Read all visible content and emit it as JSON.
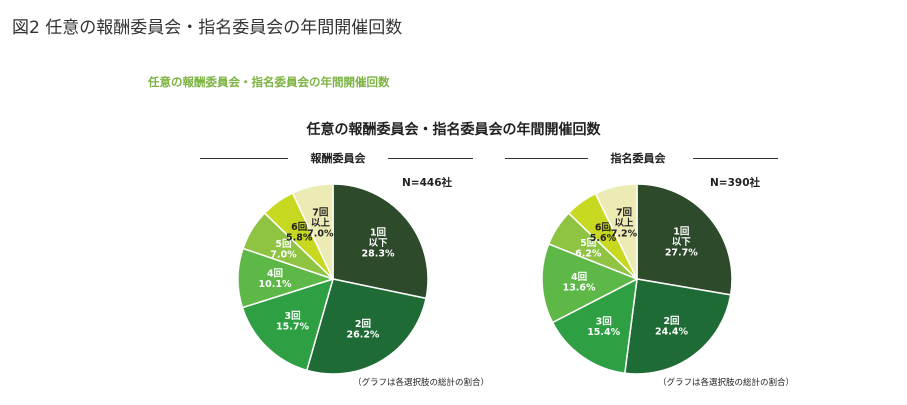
{
  "figure_title": "図2 任意の報酬委員会・指名委員会の年間開催回数",
  "subtitle_green": "任意の報酬委員会・指名委員会の年間開催回数",
  "main_title": "任意の報酬委員会・指名委員会の年間開催回数",
  "colors": {
    "subtitle": "#7cb342",
    "slices": [
      "#2d4a2b",
      "#1f6b35",
      "#2ea043",
      "#5eb848",
      "#8ec441",
      "#c6d81f",
      "#ecebb4"
    ]
  },
  "chart_data": [
    {
      "type": "pie",
      "title": "報酬委員会",
      "n_label": "N=446社",
      "note": "（グラフは各選択肢の総計の割合）",
      "slices": [
        {
          "label": [
            "1回",
            "以下",
            "28.3%"
          ],
          "value": 28.3
        },
        {
          "label": [
            "2回",
            "26.2%"
          ],
          "value": 26.2
        },
        {
          "label": [
            "3回",
            "15.7%"
          ],
          "value": 15.7
        },
        {
          "label": [
            "4回",
            "10.1%"
          ],
          "value": 10.1
        },
        {
          "label": [
            "5回",
            "7.0%"
          ],
          "value": 7.0
        },
        {
          "label": [
            "6回",
            "5.8%"
          ],
          "value": 5.8
        },
        {
          "label": [
            "7回",
            "以上",
            "7.0%"
          ],
          "value": 7.0
        }
      ]
    },
    {
      "type": "pie",
      "title": "指名委員会",
      "n_label": "N=390社",
      "note": "（グラフは各選択肢の総計の割合）",
      "slices": [
        {
          "label": [
            "1回",
            "以下",
            "27.7%"
          ],
          "value": 27.7
        },
        {
          "label": [
            "2回",
            "24.4%"
          ],
          "value": 24.4
        },
        {
          "label": [
            "3回",
            "15.4%"
          ],
          "value": 15.4
        },
        {
          "label": [
            "4回",
            "13.6%"
          ],
          "value": 13.6
        },
        {
          "label": [
            "5回",
            "6.2%"
          ],
          "value": 6.2
        },
        {
          "label": [
            "6回",
            "5.6%"
          ],
          "value": 5.6
        },
        {
          "label": [
            "7回",
            "以上",
            "7.2%"
          ],
          "value": 7.2
        }
      ]
    }
  ]
}
